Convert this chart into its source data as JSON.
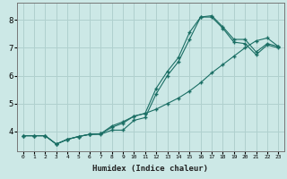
{
  "xlabel": "Humidex (Indice chaleur)",
  "ylabel": "",
  "background_color": "#cce8e6",
  "grid_color": "#b0d0ce",
  "line_color": "#1a6e64",
  "xlim": [
    -0.5,
    23.5
  ],
  "ylim": [
    3.3,
    8.6
  ],
  "yticks": [
    4,
    5,
    6,
    7,
    8
  ],
  "xticks": [
    0,
    1,
    2,
    3,
    4,
    5,
    6,
    7,
    8,
    9,
    10,
    11,
    12,
    13,
    14,
    15,
    16,
    17,
    18,
    19,
    20,
    21,
    22,
    23
  ],
  "curve1_x": [
    0,
    1,
    2,
    3,
    4,
    5,
    6,
    7,
    8,
    9,
    10,
    11,
    12,
    13,
    14,
    15,
    16,
    17,
    18,
    19,
    20,
    21,
    22,
    23
  ],
  "curve1_y": [
    3.85,
    3.85,
    3.85,
    3.55,
    3.72,
    3.82,
    3.9,
    3.9,
    4.05,
    4.05,
    4.4,
    4.5,
    5.35,
    6.0,
    6.5,
    7.3,
    8.1,
    8.15,
    7.75,
    7.3,
    7.3,
    6.85,
    7.15,
    7.05
  ],
  "curve2_x": [
    0,
    1,
    2,
    3,
    4,
    5,
    6,
    7,
    8,
    9,
    10,
    11,
    12,
    13,
    14,
    15,
    16,
    17,
    18,
    19,
    20,
    21,
    22,
    23
  ],
  "curve2_y": [
    3.85,
    3.85,
    3.85,
    3.55,
    3.72,
    3.82,
    3.9,
    3.92,
    4.15,
    4.3,
    4.55,
    4.65,
    4.8,
    5.0,
    5.2,
    5.45,
    5.75,
    6.1,
    6.4,
    6.7,
    7.0,
    7.25,
    7.35,
    7.05
  ],
  "curve3_x": [
    0,
    1,
    2,
    3,
    4,
    5,
    6,
    7,
    8,
    9,
    10,
    11,
    12,
    13,
    14,
    15,
    16,
    17,
    18,
    19,
    20,
    21,
    22,
    23
  ],
  "curve3_y": [
    3.85,
    3.85,
    3.85,
    3.55,
    3.72,
    3.82,
    3.9,
    3.92,
    4.2,
    4.35,
    4.55,
    4.65,
    5.55,
    6.15,
    6.65,
    7.55,
    8.1,
    8.1,
    7.7,
    7.2,
    7.15,
    6.75,
    7.1,
    7.0
  ]
}
